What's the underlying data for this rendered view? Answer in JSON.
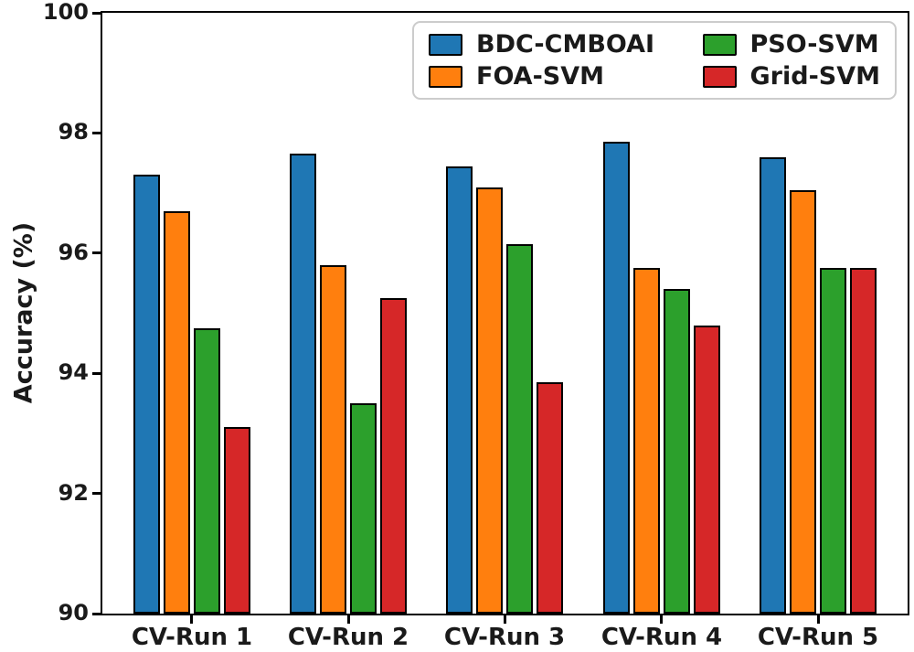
{
  "chart_data": {
    "type": "bar",
    "title": "",
    "xlabel": "",
    "ylabel": "Accuracy (%)",
    "ylim": [
      90,
      100
    ],
    "yticks": [
      90,
      92,
      94,
      96,
      98,
      100
    ],
    "grid": false,
    "legend_position": "upper center-right, 2 columns",
    "bar_edge_color": "#000000",
    "categories": [
      "CV-Run 1",
      "CV-Run 2",
      "CV-Run 3",
      "CV-Run 4",
      "CV-Run 5"
    ],
    "series": [
      {
        "name": "BDC-CMBOAI",
        "color": "#1f77b4",
        "values": [
          97.3,
          97.65,
          97.45,
          97.85,
          97.6
        ]
      },
      {
        "name": "FOA-SVM",
        "color": "#ff7f0e",
        "values": [
          96.7,
          95.8,
          97.1,
          95.75,
          97.05
        ]
      },
      {
        "name": "PSO-SVM",
        "color": "#2ca02c",
        "values": [
          94.75,
          93.5,
          96.15,
          95.4,
          95.75
        ]
      },
      {
        "name": "Grid-SVM",
        "color": "#d62728",
        "values": [
          93.1,
          95.25,
          93.85,
          94.8,
          95.75
        ]
      }
    ]
  }
}
